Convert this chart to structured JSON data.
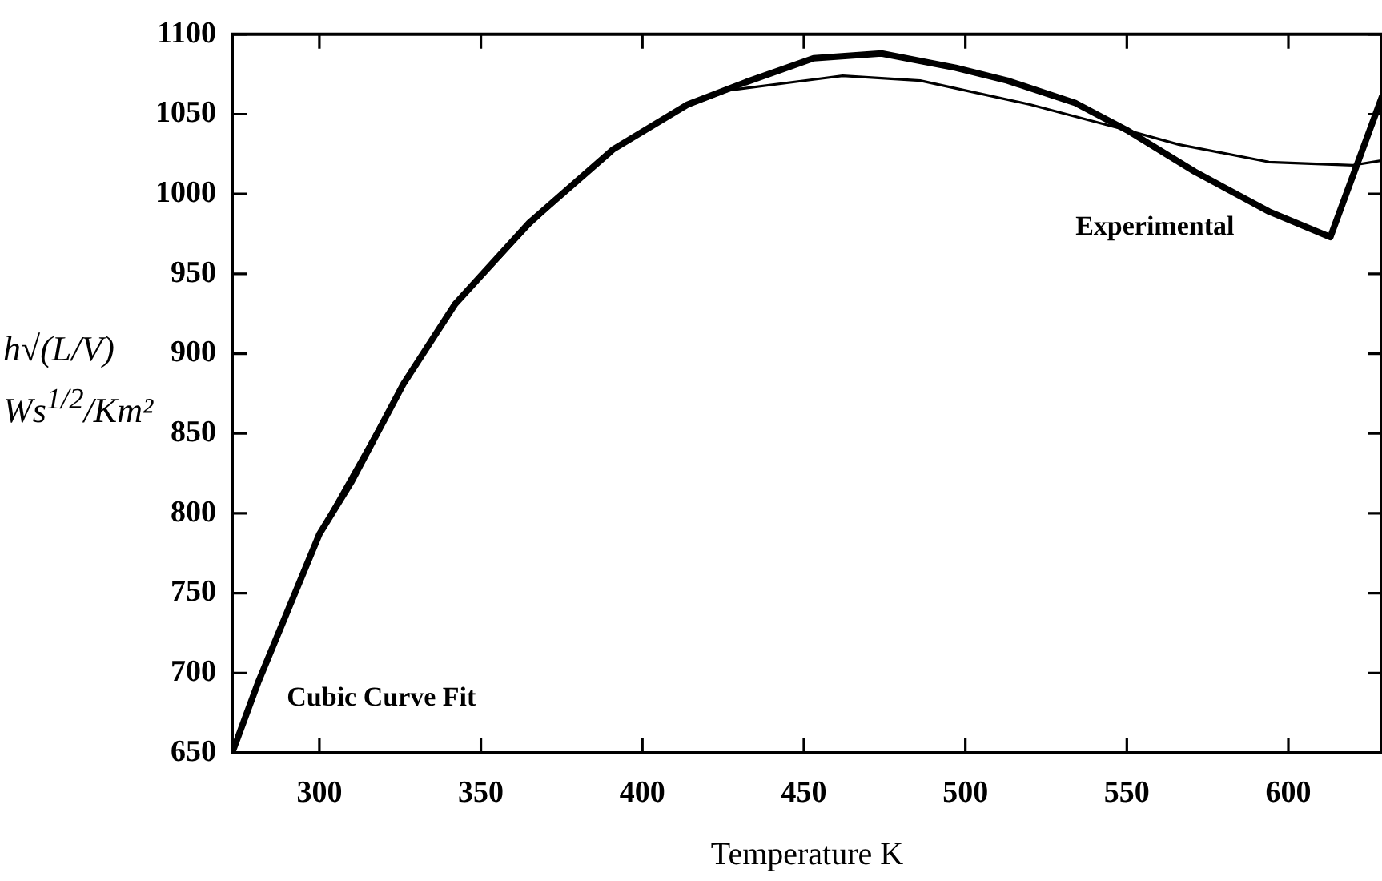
{
  "chart_data": {
    "type": "line",
    "xlabel": "Temperature K",
    "ylabel": "h√(L/V) Ws$^{1/2}$/Km²",
    "xlim": [
      273,
      629
    ],
    "ylim": [
      650,
      1100
    ],
    "xticks": [
      300,
      350,
      400,
      450,
      500,
      550,
      600
    ],
    "yticks": [
      650,
      700,
      750,
      800,
      850,
      900,
      950,
      1000,
      1050,
      1100
    ],
    "grid": false,
    "legend": false,
    "marker": "none",
    "series": [
      {
        "name": "Cubic Curve Fit",
        "color": "#000000",
        "x": [
          273,
          281,
          300,
          325,
          342,
          365,
          390,
          414,
          427,
          462,
          486,
          520,
          550,
          566,
          594,
          620,
          629
        ],
        "values": [
          652,
          694,
          788,
          878,
          930,
          980,
          1027,
          1055,
          1065,
          1074,
          1071,
          1056,
          1040,
          1031,
          1020,
          1018,
          1021
        ]
      },
      {
        "name": "Experimental",
        "color": "#000000",
        "x": [
          273,
          281,
          300,
          310,
          326,
          342,
          365,
          391,
          414,
          432,
          453,
          474,
          497,
          513,
          534,
          550,
          571,
          594,
          613,
          629
        ],
        "values": [
          650,
          694,
          787,
          820,
          881,
          931,
          982,
          1028,
          1056,
          1070,
          1085,
          1088,
          1079,
          1071,
          1057,
          1040,
          1014,
          989,
          973,
          1061
        ]
      }
    ]
  }
}
